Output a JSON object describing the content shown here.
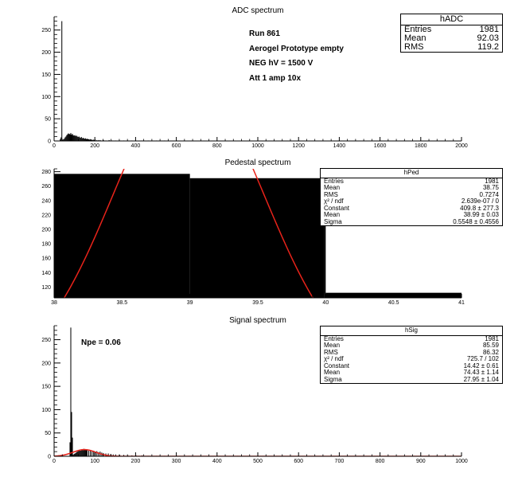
{
  "chart_data": [
    {
      "type": "bar",
      "title": "ADC spectrum",
      "xlim": [
        0,
        2000
      ],
      "ylim": [
        0,
        280
      ],
      "xticks": [
        "0",
        "200",
        "400",
        "600",
        "800",
        "1000",
        "1200",
        "1400",
        "1600",
        "1800",
        "2000"
      ],
      "yticks": [
        "0",
        "50",
        "100",
        "150",
        "200",
        "250"
      ],
      "histogram": {
        "bin_width": 4,
        "x": [
          28,
          32,
          36,
          40,
          44,
          48,
          52,
          56,
          60,
          64,
          68,
          72,
          76,
          80,
          84,
          88,
          92,
          96,
          100,
          104,
          108,
          112,
          116,
          120,
          124,
          128,
          132,
          136,
          140,
          144,
          148,
          152,
          156,
          160,
          164,
          168,
          172,
          176,
          180,
          184,
          188,
          192,
          196,
          200,
          208,
          216,
          224,
          232,
          240,
          252,
          268,
          284,
          300,
          320,
          340,
          360,
          380,
          400,
          430,
          460,
          500,
          540,
          600
        ],
        "values": [
          4,
          8,
          270,
          2,
          4,
          5,
          8,
          10,
          13,
          15,
          17,
          16,
          15,
          18,
          14,
          16,
          13,
          12,
          13,
          11,
          12,
          10,
          9,
          10,
          8,
          7,
          9,
          6,
          7,
          6,
          5,
          6,
          4,
          5,
          4,
          4,
          3,
          4,
          3,
          3,
          2,
          3,
          2,
          3,
          2,
          2,
          2,
          1,
          2,
          1,
          2,
          1,
          1,
          1,
          1,
          1,
          1,
          1,
          1,
          1,
          1,
          1,
          1
        ]
      },
      "stats": {
        "name": "hADC",
        "rows": [
          {
            "label": "Entries",
            "value": "1981"
          },
          {
            "label": "Mean",
            "value": "92.03"
          },
          {
            "label": "RMS",
            "value": "119.2"
          }
        ]
      },
      "notes": [
        "Run  861",
        "Aerogel Prototype empty",
        "NEG hV = 1500 V",
        "Att 1 amp 10x"
      ]
    },
    {
      "type": "bar",
      "title": "Pedestal spectrum",
      "xlim": [
        38,
        41
      ],
      "ylim": [
        105,
        284
      ],
      "xticks": [
        "38",
        "38.5",
        "39",
        "39.5",
        "40",
        "40.5",
        "41"
      ],
      "yticks": [
        "120",
        "140",
        "160",
        "180",
        "200",
        "220",
        "240",
        "260",
        "280"
      ],
      "histogram": {
        "edges": [
          38,
          39,
          39.99,
          40,
          41
        ],
        "values": [
          277,
          271,
          271,
          112
        ]
      },
      "fit": {
        "constant": 409.8,
        "mean": 38.99,
        "sigma": 0.5548,
        "color": "#e8231a"
      },
      "stats": {
        "name": "hPed",
        "rows": [
          {
            "label": "Entries",
            "value": "1981"
          },
          {
            "label": "Mean",
            "value": "38.75"
          },
          {
            "label": "RMS",
            "value": "0.7274"
          },
          {
            "label": "χ² / ndf",
            "value": "2.639e-07 / 0"
          },
          {
            "label": "Constant",
            "value": "409.8 ± 277.3"
          },
          {
            "label": "Mean",
            "value": "38.99 ± 0.03"
          },
          {
            "label": "Sigma",
            "value": "0.5548 ± 0.4556"
          }
        ]
      }
    },
    {
      "type": "bar",
      "title": "Signal spectrum",
      "xlim": [
        0,
        1000
      ],
      "ylim": [
        0,
        280
      ],
      "xticks": [
        "0",
        "100",
        "200",
        "300",
        "400",
        "500",
        "600",
        "700",
        "800",
        "900",
        "1000"
      ],
      "yticks": [
        "0",
        "50",
        "100",
        "150",
        "200",
        "250"
      ],
      "histogram": {
        "bin_width": 2,
        "x": [
          38,
          40,
          42,
          44,
          46,
          48,
          50,
          52,
          54,
          56,
          58,
          60,
          62,
          64,
          66,
          68,
          70,
          72,
          74,
          76,
          78,
          80,
          84,
          88,
          92,
          96,
          100,
          104,
          108,
          112,
          116,
          120,
          126,
          132,
          138,
          144,
          150,
          160,
          170,
          180,
          190,
          200,
          215,
          230,
          250,
          270,
          300,
          330,
          360,
          400,
          450,
          500
        ],
        "values": [
          30,
          276,
          95,
          40,
          3,
          5,
          6,
          7,
          9,
          10,
          11,
          12,
          13,
          12,
          14,
          15,
          13,
          16,
          14,
          15,
          13,
          14,
          12,
          13,
          11,
          12,
          10,
          11,
          9,
          10,
          8,
          7,
          6,
          6,
          5,
          4,
          4,
          3,
          3,
          2,
          2,
          2,
          2,
          1,
          1,
          1,
          1,
          1,
          1,
          1,
          1,
          1
        ]
      },
      "fit": {
        "constant": 14.42,
        "mean": 74.43,
        "sigma": 27.95,
        "color": "#e8231a"
      },
      "stats": {
        "name": "hSig",
        "rows": [
          {
            "label": "Entries",
            "value": "1981"
          },
          {
            "label": "Mean",
            "value": "85.59"
          },
          {
            "label": "RMS",
            "value": "86.32"
          },
          {
            "label": "χ² / ndf",
            "value": "725.7 / 102"
          },
          {
            "label": "Constant",
            "value": "14.42 ± 0.61"
          },
          {
            "label": "Mean",
            "value": "74.43 ± 1.14"
          },
          {
            "label": "Sigma",
            "value": "27.95 ± 1.04"
          }
        ]
      },
      "notes": [
        "Npe = 0.06"
      ]
    }
  ]
}
